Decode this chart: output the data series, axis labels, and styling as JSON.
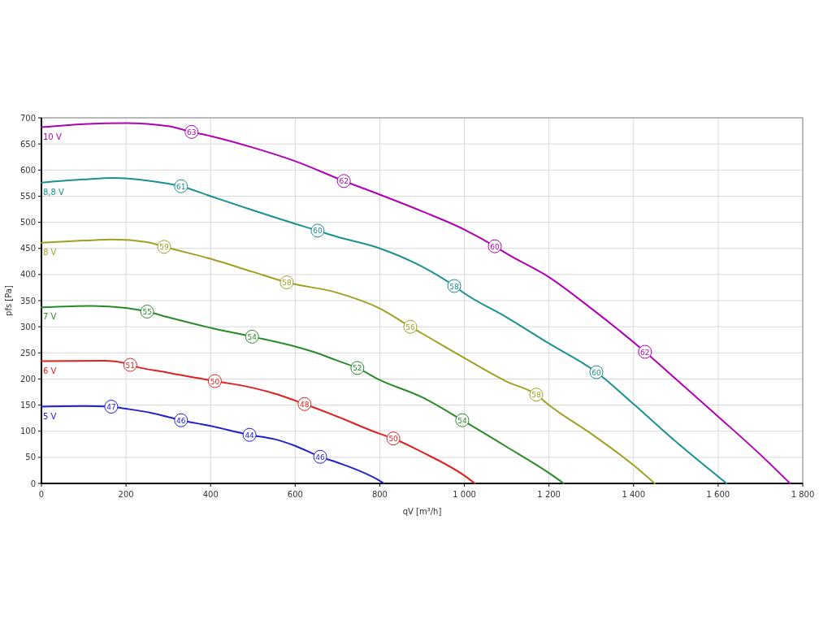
{
  "chart_data": {
    "type": "line",
    "xlabel": "qV [m³/h]",
    "ylabel": "pfs [Pa]",
    "xlim": [
      0,
      1800
    ],
    "ylim": [
      0,
      700
    ],
    "xticks": [
      0,
      200,
      400,
      600,
      800,
      {
        "value": 1000,
        "label": "1 000"
      },
      {
        "value": 1200,
        "label": "1 200"
      },
      {
        "value": 1400,
        "label": "1 400"
      },
      {
        "value": 1600,
        "label": "1 600"
      },
      {
        "value": 1800,
        "label": "1 800"
      }
    ],
    "yticks": [
      0,
      50,
      100,
      150,
      200,
      250,
      300,
      350,
      400,
      450,
      500,
      550,
      600,
      650,
      700
    ],
    "grid": true,
    "marker": "none",
    "line_style": "solid",
    "series": [
      {
        "name": "10 V",
        "color": "#b000b0",
        "x": [
          0,
          100,
          200,
          300,
          355,
          400,
          500,
          600,
          715,
          800,
          900,
          1000,
          1072,
          1100,
          1200,
          1300,
          1427,
          1500,
          1600,
          1700,
          1770
        ],
        "values": [
          682,
          688,
          690,
          684,
          673,
          665,
          643,
          617,
          579,
          553,
          521,
          486,
          454,
          440,
          395,
          335,
          252,
          200,
          128,
          55,
          0
        ]
      },
      {
        "name": "8,8 V",
        "color": "#1a9090",
        "x": [
          0,
          100,
          170,
          250,
          330,
          400,
          500,
          600,
          653,
          700,
          800,
          900,
          976,
          1000,
          1100,
          1200,
          1312,
          1400,
          1500,
          1620
        ],
        "values": [
          576,
          582,
          585,
          580,
          569,
          550,
          523,
          497,
          484,
          472,
          450,
          415,
          378,
          364,
          318,
          268,
          213,
          152,
          80,
          0
        ]
      },
      {
        "name": "8 V",
        "color": "#a0a020",
        "x": [
          0,
          100,
          170,
          250,
          290,
          400,
          500,
          580,
          700,
          800,
          872,
          900,
          1000,
          1100,
          1170,
          1200,
          1300,
          1400,
          1450
        ],
        "values": [
          461,
          465,
          467,
          462,
          453,
          430,
          405,
          385,
          365,
          335,
          300,
          287,
          240,
          195,
          170,
          150,
          95,
          35,
          0
        ]
      },
      {
        "name": "7 V",
        "color": "#2a8a2a",
        "x": [
          0,
          120,
          200,
          250,
          300,
          400,
          498,
          600,
          650,
          700,
          747,
          800,
          900,
          995,
          1100,
          1200,
          1235
        ],
        "values": [
          337,
          340,
          336,
          329,
          318,
          298,
          281,
          262,
          250,
          235,
          221,
          198,
          165,
          121,
          70,
          20,
          0
        ]
      },
      {
        "name": "6 V",
        "color": "#e02020",
        "x": [
          0,
          150,
          200,
          210,
          300,
          410,
          500,
          560,
          622,
          700,
          800,
          832,
          900,
          1000,
          1025
        ],
        "values": [
          234,
          235,
          230,
          227,
          212,
          196,
          183,
          170,
          152,
          128,
          95,
          86,
          60,
          15,
          0
        ]
      },
      {
        "name": "5 V",
        "color": "#2020d0",
        "x": [
          0,
          100,
          165,
          200,
          260,
          330,
          400,
          492,
          550,
          600,
          659,
          700,
          800,
          810
        ],
        "values": [
          147,
          148,
          147,
          143,
          135,
          121,
          110,
          93,
          85,
          72,
          51,
          40,
          5,
          0
        ]
      }
    ],
    "annotations": [
      {
        "text": "63",
        "x": 355,
        "y": 673
      },
      {
        "text": "62",
        "x": 715,
        "y": 579
      },
      {
        "text": "60",
        "x": 1072,
        "y": 454
      },
      {
        "text": "62",
        "x": 1427,
        "y": 252
      },
      {
        "text": "61",
        "x": 330,
        "y": 569
      },
      {
        "text": "60",
        "x": 653,
        "y": 484
      },
      {
        "text": "58",
        "x": 976,
        "y": 378
      },
      {
        "text": "60",
        "x": 1312,
        "y": 213
      },
      {
        "text": "59",
        "x": 290,
        "y": 453
      },
      {
        "text": "58",
        "x": 580,
        "y": 385
      },
      {
        "text": "56",
        "x": 872,
        "y": 300
      },
      {
        "text": "58",
        "x": 1170,
        "y": 170
      },
      {
        "text": "55",
        "x": 250,
        "y": 329
      },
      {
        "text": "54",
        "x": 498,
        "y": 281
      },
      {
        "text": "52",
        "x": 747,
        "y": 221
      },
      {
        "text": "54",
        "x": 995,
        "y": 121
      },
      {
        "text": "51",
        "x": 210,
        "y": 227
      },
      {
        "text": "50",
        "x": 410,
        "y": 196
      },
      {
        "text": "48",
        "x": 622,
        "y": 152
      },
      {
        "text": "50",
        "x": 832,
        "y": 86
      },
      {
        "text": "47",
        "x": 165,
        "y": 147
      },
      {
        "text": "46",
        "x": 330,
        "y": 121
      },
      {
        "text": "44",
        "x": 492,
        "y": 93
      },
      {
        "text": "46",
        "x": 659,
        "y": 51
      }
    ]
  }
}
